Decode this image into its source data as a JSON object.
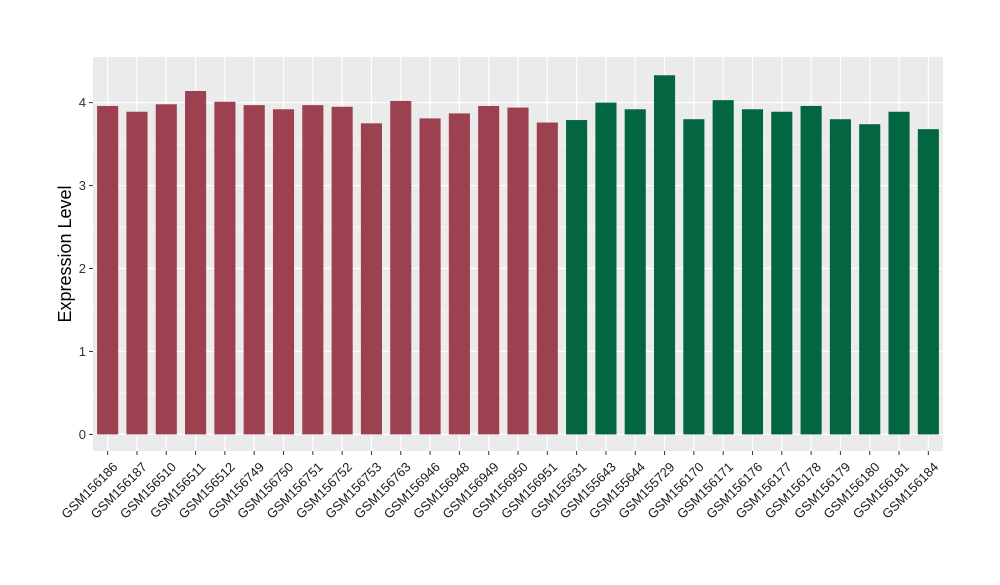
{
  "chart_data": {
    "type": "bar",
    "title": "",
    "xlabel": "",
    "ylabel": "Expression Level",
    "ylim": [
      -0.2,
      4.55
    ],
    "yticks": [
      0,
      1,
      2,
      3,
      4
    ],
    "grid": true,
    "background": "#ebebeb",
    "grid_color": "#ffffff",
    "colors": {
      "group1": "#9b4150",
      "group2": "#036641"
    },
    "categories": [
      "GSM156186",
      "GSM156187",
      "GSM156510",
      "GSM156511",
      "GSM156512",
      "GSM156749",
      "GSM156750",
      "GSM156751",
      "GSM156752",
      "GSM156753",
      "GSM156763",
      "GSM156946",
      "GSM156948",
      "GSM156949",
      "GSM156950",
      "GSM156951",
      "GSM155631",
      "GSM155643",
      "GSM155644",
      "GSM155729",
      "GSM156170",
      "GSM156171",
      "GSM156176",
      "GSM156177",
      "GSM156178",
      "GSM156179",
      "GSM156180",
      "GSM156181",
      "GSM156184"
    ],
    "values": [
      3.96,
      3.89,
      3.98,
      4.14,
      4.01,
      3.97,
      3.92,
      3.97,
      3.95,
      3.75,
      4.02,
      3.81,
      3.87,
      3.96,
      3.94,
      3.76,
      3.79,
      4.0,
      3.92,
      4.33,
      3.8,
      4.03,
      3.92,
      3.89,
      3.96,
      3.8,
      3.74,
      3.89,
      3.68
    ],
    "group": [
      "group1",
      "group1",
      "group1",
      "group1",
      "group1",
      "group1",
      "group1",
      "group1",
      "group1",
      "group1",
      "group1",
      "group1",
      "group1",
      "group1",
      "group1",
      "group1",
      "group2",
      "group2",
      "group2",
      "group2",
      "group2",
      "group2",
      "group2",
      "group2",
      "group2",
      "group2",
      "group2",
      "group2",
      "group2"
    ]
  }
}
